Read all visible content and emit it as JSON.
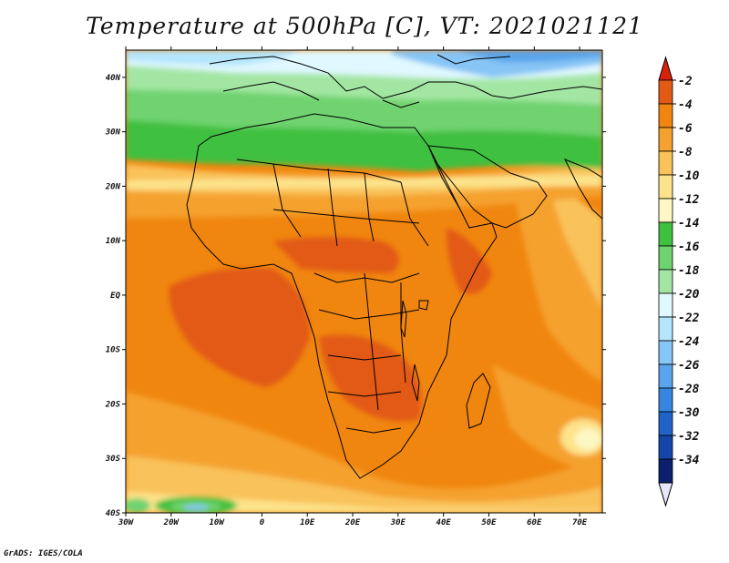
{
  "title": "Temperature at 500hPa [C], VT: 2021021121",
  "credit": "GrADS: IGES/COLA",
  "map": {
    "lat_labels": [
      "40N",
      "30N",
      "20N",
      "10N",
      "EQ",
      "10S",
      "20S",
      "30S",
      "40S"
    ],
    "lon_labels": [
      "30W",
      "20W",
      "10W",
      "0",
      "10E",
      "20E",
      "30E",
      "40E",
      "50E",
      "60E",
      "70E"
    ],
    "lat_range": [
      -40,
      45
    ],
    "lon_range": [
      -30,
      75
    ]
  },
  "colorbar": {
    "labels": [
      "-2",
      "-4",
      "-6",
      "-8",
      "-10",
      "-12",
      "-14",
      "-16",
      "-18",
      "-20",
      "-22",
      "-24",
      "-26",
      "-28",
      "-30",
      "-32",
      "-34"
    ],
    "colors": [
      "#e25a14",
      "#f0860f",
      "#f5a12f",
      "#f9c25a",
      "#fde38b",
      "#fdf7c4",
      "#3fc03f",
      "#6fd36f",
      "#a3e6a3",
      "#e0f8ff",
      "#b3e5fc",
      "#86c5f5",
      "#5aa4ec",
      "#3686e0",
      "#1f63c9",
      "#1346a8",
      "#0b1f6e"
    ],
    "top_arrow_color": "#d8220c",
    "bottom_arrow_color": "#e6e6fa"
  }
}
